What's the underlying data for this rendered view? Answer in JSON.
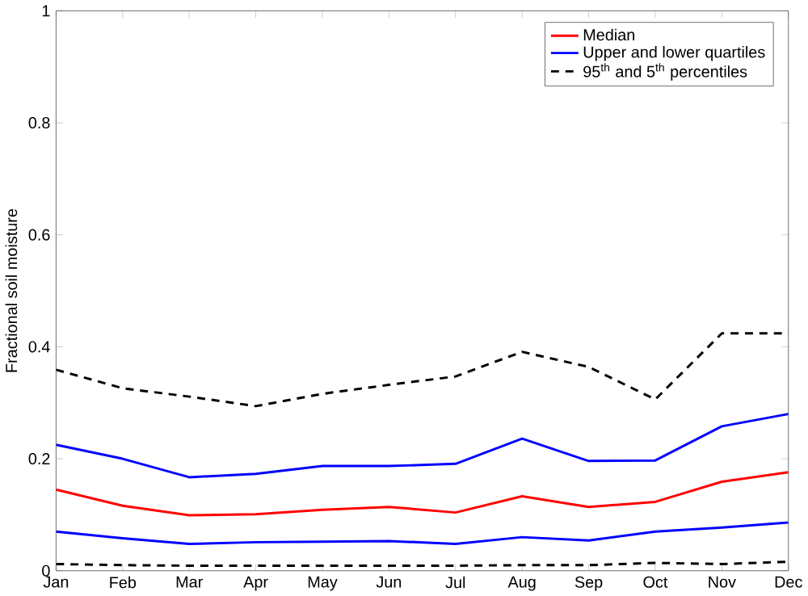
{
  "chart_data": {
    "type": "line",
    "ylabel": "Fractional soil moisture",
    "categories": [
      "Jan",
      "Feb",
      "Mar",
      "Apr",
      "May",
      "Jun",
      "Jul",
      "Aug",
      "Sep",
      "Oct",
      "Nov",
      "Dec"
    ],
    "ylim": [
      0,
      1
    ],
    "yticks": [
      0,
      0.2,
      0.4,
      0.6,
      0.8,
      1
    ],
    "grid": false,
    "legend": "top right",
    "marker": "none",
    "series": [
      {
        "name": "Median",
        "color": "#ff0000",
        "line_style": "solid",
        "values": [
          0.145,
          0.116,
          0.099,
          0.101,
          0.109,
          0.114,
          0.104,
          0.133,
          0.114,
          0.123,
          0.159,
          0.176
        ]
      },
      {
        "name": "Upper and lower quartiles",
        "color": "#0000ff",
        "line_style": "solid",
        "values": [
          0.225,
          0.2,
          0.167,
          0.173,
          0.187,
          0.187,
          0.191,
          0.236,
          0.196,
          0.197,
          0.258,
          0.28
        ]
      },
      {
        "color": "#0000ff",
        "line_style": "solid",
        "values": [
          0.07,
          0.058,
          0.048,
          0.051,
          0.052,
          0.053,
          0.048,
          0.06,
          0.054,
          0.07,
          0.077,
          0.086
        ]
      },
      {
        "name": "95$^{th}$ and 5$^{th}$ percentiles",
        "color": "#000000",
        "line_style": "dashed",
        "values": [
          0.359,
          0.326,
          0.311,
          0.294,
          0.316,
          0.332,
          0.347,
          0.391,
          0.364,
          0.306,
          0.424,
          0.424
        ]
      },
      {
        "color": "#000000",
        "line_style": "dashed",
        "values": [
          0.012,
          0.01,
          0.009,
          0.009,
          0.009,
          0.009,
          0.009,
          0.01,
          0.01,
          0.014,
          0.012,
          0.016
        ]
      }
    ]
  }
}
